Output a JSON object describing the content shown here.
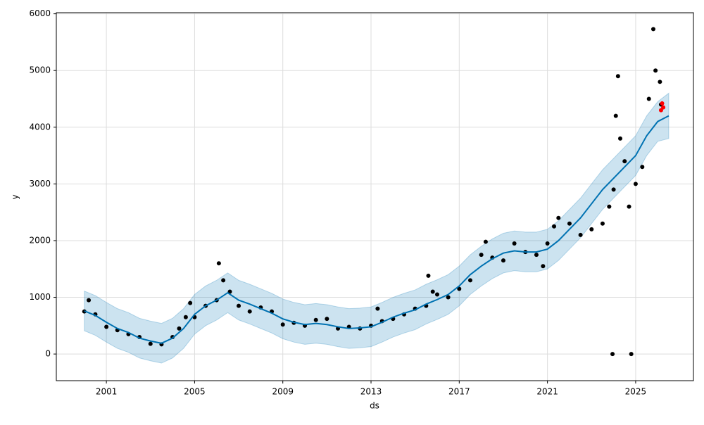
{
  "chart_data": {
    "type": "forecast",
    "xlabel": "ds",
    "ylabel": "y",
    "xlim": [
      1998.73,
      2027.62
    ],
    "ylim": [
      -470,
      6020
    ],
    "xticks": [
      2001,
      2005,
      2009,
      2013,
      2017,
      2021,
      2025
    ],
    "yticks": [
      0,
      1000,
      2000,
      3000,
      4000,
      5000,
      6000
    ],
    "grid": true,
    "x": [
      2000.0,
      2000.5,
      2001.0,
      2001.5,
      2002.0,
      2002.5,
      2003.0,
      2003.5,
      2004.0,
      2004.5,
      2005.0,
      2005.5,
      2006.0,
      2006.5,
      2007.0,
      2007.5,
      2008.0,
      2008.5,
      2009.0,
      2009.5,
      2010.0,
      2010.5,
      2011.0,
      2011.5,
      2012.0,
      2012.5,
      2013.0,
      2013.5,
      2014.0,
      2014.5,
      2015.0,
      2015.5,
      2016.0,
      2016.5,
      2017.0,
      2017.5,
      2018.0,
      2018.5,
      2019.0,
      2019.5,
      2020.0,
      2020.5,
      2021.0,
      2021.5,
      2022.0,
      2022.5,
      2023.0,
      2023.5,
      2024.0,
      2024.5,
      2025.0,
      2025.5,
      2026.0,
      2026.5
    ],
    "forecast": {
      "color": "#0072b2",
      "values": [
        760,
        680,
        560,
        450,
        380,
        280,
        230,
        190,
        280,
        450,
        700,
        850,
        950,
        1080,
        950,
        880,
        800,
        720,
        620,
        560,
        520,
        540,
        520,
        480,
        450,
        460,
        480,
        560,
        650,
        720,
        780,
        880,
        960,
        1050,
        1200,
        1400,
        1550,
        1680,
        1780,
        1820,
        1800,
        1800,
        1850,
        2000,
        2200,
        2400,
        2650,
        2900,
        3100,
        3300,
        3500,
        3850,
        4100,
        4200
      ]
    },
    "band": {
      "color": "#0072b2",
      "upper": [
        1110,
        1030,
        910,
        800,
        730,
        630,
        580,
        540,
        630,
        800,
        1050,
        1200,
        1300,
        1430,
        1300,
        1230,
        1150,
        1070,
        970,
        910,
        870,
        890,
        870,
        830,
        800,
        810,
        830,
        910,
        1000,
        1070,
        1130,
        1230,
        1310,
        1400,
        1550,
        1750,
        1900,
        2030,
        2130,
        2170,
        2150,
        2150,
        2200,
        2350,
        2550,
        2750,
        3000,
        3250,
        3450,
        3650,
        3850,
        4200,
        4450,
        4600
      ],
      "lower": [
        410,
        330,
        210,
        100,
        30,
        -70,
        -120,
        -160,
        -70,
        100,
        350,
        500,
        600,
        730,
        600,
        530,
        450,
        370,
        270,
        210,
        170,
        190,
        170,
        130,
        100,
        110,
        130,
        210,
        300,
        370,
        430,
        530,
        610,
        700,
        850,
        1050,
        1200,
        1330,
        1430,
        1470,
        1450,
        1450,
        1500,
        1650,
        1850,
        2050,
        2300,
        2550,
        2750,
        2950,
        3150,
        3500,
        3750,
        3800
      ]
    },
    "points": [
      {
        "color": "#000000",
        "x": [
          2000.0,
          2000.2,
          2000.5,
          2001.0,
          2001.5,
          2002.0,
          2002.5,
          2003.0,
          2003.5,
          2004.0,
          2004.3,
          2004.6,
          2004.8,
          2005.0,
          2005.5,
          2006.0,
          2006.1,
          2006.3,
          2006.6,
          2007.0,
          2007.5,
          2008.0,
          2008.5,
          2009.0,
          2009.5,
          2010.0,
          2010.5,
          2011.0,
          2011.5,
          2012.0,
          2012.5,
          2013.0,
          2013.3,
          2013.5,
          2014.0,
          2014.5,
          2015.0,
          2015.5,
          2015.6,
          2015.8,
          2016.0,
          2016.5,
          2017.0,
          2017.5,
          2018.0,
          2018.2,
          2018.5,
          2019.0,
          2019.5,
          2020.0,
          2020.5,
          2020.8,
          2021.0,
          2021.3,
          2021.5,
          2022.0,
          2022.5,
          2023.0,
          2023.5,
          2023.8,
          2023.95,
          2024.0,
          2024.1,
          2024.2,
          2024.3,
          2024.5,
          2024.7,
          2024.8,
          2025.0,
          2025.3,
          2025.6,
          2025.8,
          2025.9,
          2026.1,
          2026.15
        ],
        "values": [
          750,
          950,
          700,
          480,
          420,
          350,
          300,
          180,
          170,
          300,
          450,
          650,
          900,
          650,
          850,
          950,
          1600,
          1300,
          1100,
          850,
          750,
          820,
          750,
          520,
          550,
          500,
          600,
          620,
          450,
          480,
          450,
          500,
          800,
          580,
          620,
          700,
          800,
          850,
          1380,
          1100,
          1050,
          1000,
          1150,
          1300,
          1750,
          1980,
          1700,
          1650,
          1950,
          1800,
          1750,
          1550,
          1950,
          2250,
          2400,
          2300,
          2100,
          2200,
          2300,
          2600,
          0,
          2900,
          4200,
          4900,
          3800,
          3400,
          2600,
          0,
          3000,
          3300,
          4500,
          5730,
          5000,
          4800,
          4400
        ]
      },
      {
        "color": "#ff0000",
        "x": [
          2026.15,
          2026.2,
          2026.25
        ],
        "values": [
          4300,
          4420,
          4350
        ]
      }
    ]
  }
}
